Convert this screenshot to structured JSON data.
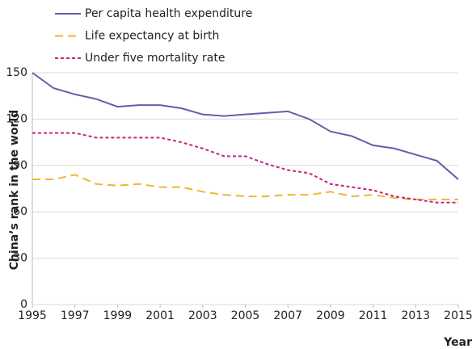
{
  "chart_data": {
    "type": "line",
    "y_label": "China’s rank in the world",
    "x_label": "Year",
    "x": [
      1995,
      1996,
      1997,
      1998,
      1999,
      2000,
      2001,
      2002,
      2003,
      2004,
      2005,
      2006,
      2007,
      2008,
      2009,
      2010,
      2011,
      2012,
      2013,
      2014,
      2015
    ],
    "series": [
      {
        "name": "Per capita health expenditure",
        "color": "#6a5ba8",
        "linestyle": "solid",
        "values": [
          150,
          140,
          136,
          133,
          128,
          129,
          129,
          127,
          123,
          122,
          123,
          124,
          125,
          120,
          112,
          109,
          103,
          101,
          97,
          93,
          81
        ]
      },
      {
        "name": "Life expectancy at birth",
        "color": "#f5b335",
        "linestyle": "dashed",
        "values": [
          81,
          81,
          84,
          78,
          77,
          78,
          76,
          76,
          73,
          71,
          70,
          70,
          71,
          71,
          73,
          70,
          71,
          69,
          68,
          68,
          68
        ]
      },
      {
        "name": "Under five mortality rate",
        "color": "#c2267f",
        "linestyle": "dotted",
        "values": [
          111,
          111,
          111,
          108,
          108,
          108,
          108,
          105,
          101,
          96,
          96,
          91,
          87,
          85,
          78,
          76,
          74,
          70,
          68,
          66,
          66
        ]
      }
    ],
    "xlim": [
      1995,
      2015
    ],
    "xticks": [
      1995,
      1997,
      1999,
      2001,
      2003,
      2005,
      2007,
      2009,
      2011,
      2013,
      2015
    ],
    "ylim": [
      0,
      150
    ],
    "yticks": [
      0,
      30,
      60,
      90,
      120,
      150
    ],
    "grid": true,
    "legend": "top-left"
  }
}
